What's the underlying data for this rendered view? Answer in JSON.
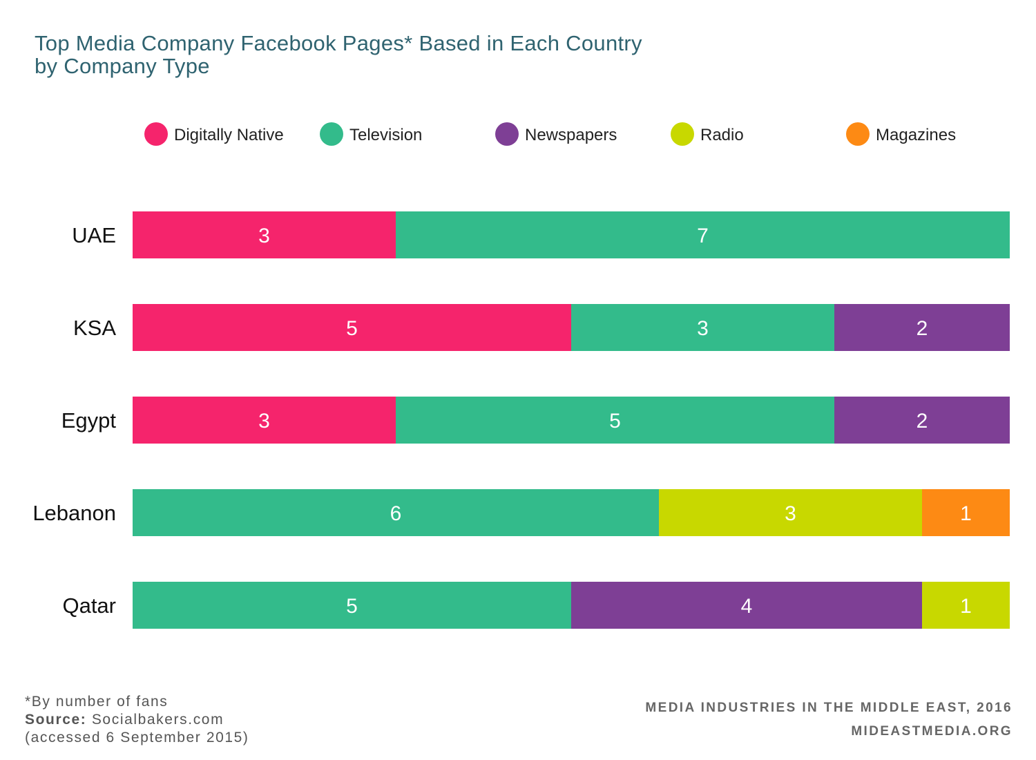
{
  "chart_data": {
    "type": "bar",
    "orientation": "horizontal",
    "stacked": true,
    "title_lines": [
      "Top Media Company Facebook Pages* Based in Each Country",
      "by Company Type"
    ],
    "categories": [
      "UAE",
      "KSA",
      "Egypt",
      "Lebanon",
      "Qatar"
    ],
    "xlim": [
      0,
      10
    ],
    "grid": false,
    "legend_position": "top",
    "series": [
      {
        "name": "Digitally Native",
        "color": "#f5246c",
        "values": [
          3,
          5,
          3,
          0,
          0
        ]
      },
      {
        "name": "Television",
        "color": "#33bb8b",
        "values": [
          7,
          3,
          5,
          6,
          5
        ]
      },
      {
        "name": "Newspapers",
        "color": "#7e3f95",
        "values": [
          0,
          2,
          2,
          0,
          4
        ]
      },
      {
        "name": "Radio",
        "color": "#c8d800",
        "values": [
          0,
          0,
          0,
          3,
          1
        ]
      },
      {
        "name": "Magazines",
        "color": "#fd8a14",
        "values": [
          0,
          0,
          0,
          1,
          0
        ]
      }
    ],
    "segment_order": [
      [
        "Digitally Native",
        "Television"
      ],
      [
        "Digitally Native",
        "Television",
        "Newspapers"
      ],
      [
        "Digitally Native",
        "Television",
        "Newspapers"
      ],
      [
        "Television",
        "Radio",
        "Magazines"
      ],
      [
        "Television",
        "Newspapers",
        "Radio"
      ]
    ]
  },
  "footer": {
    "note": "*By number of fans",
    "source_label": "Source:",
    "source_value": "Socialbakers.com",
    "accessed": "(accessed 6 September 2015)",
    "credit_line1": "MEDIA INDUSTRIES IN THE MIDDLE EAST, 2016",
    "credit_line2": "MIDEASTMEDIA.ORG"
  }
}
